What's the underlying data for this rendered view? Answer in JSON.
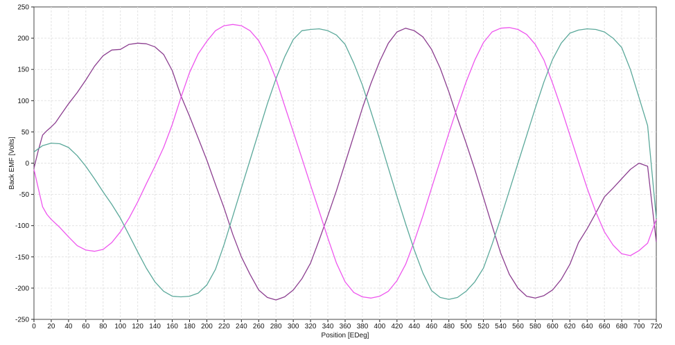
{
  "chart_data": {
    "type": "line",
    "title": "",
    "xlabel": "Position [EDeg]",
    "ylabel": "Back EMF [Volts]",
    "xlim": [
      0,
      720
    ],
    "ylim": [
      -250,
      250
    ],
    "xticks": [
      0,
      20,
      40,
      60,
      80,
      100,
      120,
      140,
      160,
      180,
      200,
      220,
      240,
      260,
      280,
      300,
      320,
      340,
      360,
      380,
      400,
      420,
      440,
      460,
      480,
      500,
      520,
      540,
      560,
      580,
      600,
      620,
      640,
      660,
      680,
      700,
      720
    ],
    "yticks": [
      -250,
      -200,
      -150,
      -100,
      -50,
      0,
      50,
      100,
      150,
      200,
      250
    ],
    "grid": true,
    "legend": "none",
    "series": [
      {
        "color": "#8b3d8f",
        "x": [
          0,
          5,
          10,
          15,
          20,
          25,
          30,
          40,
          50,
          60,
          70,
          80,
          90,
          100,
          110,
          120,
          130,
          140,
          150,
          160,
          170,
          180,
          190,
          200,
          210,
          220,
          230,
          240,
          250,
          260,
          270,
          280,
          290,
          300,
          310,
          320,
          330,
          340,
          350,
          360,
          370,
          380,
          390,
          400,
          410,
          420,
          430,
          440,
          450,
          460,
          470,
          480,
          490,
          500,
          510,
          520,
          530,
          540,
          550,
          560,
          570,
          580,
          590,
          600,
          610,
          620,
          630,
          640,
          650,
          660,
          670,
          680,
          690,
          700,
          710,
          720
        ],
        "y": [
          -8,
          20,
          45,
          52,
          58,
          65,
          75,
          95,
          113,
          133,
          155,
          172,
          181,
          182,
          190,
          192,
          191,
          186,
          174,
          148,
          108,
          75,
          40,
          5,
          -34,
          -72,
          -114,
          -150,
          -178,
          -203,
          -215,
          -219,
          -214,
          -203,
          -185,
          -160,
          -123,
          -84,
          -44,
          0,
          44,
          88,
          128,
          163,
          192,
          210,
          216,
          212,
          202,
          182,
          152,
          114,
          72,
          32,
          -10,
          -55,
          -100,
          -144,
          -178,
          -200,
          -213,
          -216,
          -212,
          -203,
          -186,
          -162,
          -127,
          -105,
          -80,
          -54,
          -40,
          -25,
          -10,
          0,
          -5,
          -126
        ]
      },
      {
        "color": "#ee55ee",
        "x": [
          0,
          5,
          10,
          15,
          20,
          30,
          40,
          50,
          60,
          70,
          80,
          90,
          100,
          110,
          120,
          130,
          140,
          150,
          160,
          170,
          180,
          190,
          200,
          210,
          220,
          230,
          240,
          250,
          260,
          270,
          280,
          290,
          300,
          310,
          320,
          330,
          340,
          350,
          360,
          370,
          380,
          390,
          400,
          410,
          420,
          430,
          440,
          450,
          460,
          470,
          480,
          490,
          500,
          510,
          520,
          530,
          540,
          550,
          560,
          570,
          580,
          590,
          600,
          610,
          620,
          630,
          640,
          650,
          660,
          670,
          680,
          690,
          700,
          710,
          720
        ],
        "y": [
          -10,
          -40,
          -70,
          -82,
          -90,
          -103,
          -118,
          -132,
          -139,
          -141,
          -138,
          -127,
          -110,
          -88,
          -62,
          -33,
          -5,
          25,
          62,
          105,
          145,
          175,
          195,
          212,
          220,
          222,
          220,
          212,
          196,
          170,
          135,
          92,
          50,
          8,
          -35,
          -77,
          -120,
          -160,
          -190,
          -207,
          -214,
          -216,
          -213,
          -205,
          -188,
          -162,
          -125,
          -84,
          -40,
          4,
          48,
          90,
          130,
          165,
          193,
          210,
          216,
          217,
          214,
          206,
          190,
          165,
          128,
          88,
          45,
          2,
          -40,
          -78,
          -110,
          -131,
          -145,
          -148,
          -140,
          -128,
          -90
        ]
      },
      {
        "color": "#5aa89a",
        "x": [
          0,
          10,
          20,
          30,
          40,
          50,
          60,
          70,
          80,
          90,
          100,
          110,
          120,
          130,
          140,
          150,
          160,
          170,
          180,
          190,
          200,
          210,
          220,
          230,
          240,
          250,
          260,
          270,
          280,
          290,
          300,
          310,
          320,
          330,
          340,
          350,
          360,
          370,
          380,
          390,
          400,
          410,
          420,
          430,
          440,
          450,
          460,
          470,
          480,
          490,
          500,
          510,
          520,
          530,
          540,
          550,
          560,
          570,
          580,
          590,
          600,
          610,
          620,
          630,
          640,
          650,
          660,
          670,
          680,
          690,
          700,
          710,
          720
        ],
        "y": [
          18,
          28,
          32,
          31,
          25,
          12,
          -5,
          -25,
          -46,
          -66,
          -88,
          -115,
          -142,
          -168,
          -190,
          -205,
          -213,
          -214,
          -213,
          -208,
          -195,
          -170,
          -130,
          -85,
          -40,
          5,
          50,
          95,
          135,
          170,
          198,
          212,
          214,
          215,
          212,
          205,
          190,
          160,
          125,
          82,
          38,
          -8,
          -53,
          -97,
          -139,
          -176,
          -204,
          -215,
          -218,
          -215,
          -205,
          -190,
          -168,
          -130,
          -88,
          -44,
          0,
          44,
          88,
          130,
          166,
          192,
          208,
          213,
          215,
          214,
          210,
          200,
          185,
          150,
          105,
          60,
          -88
        ]
      }
    ]
  }
}
